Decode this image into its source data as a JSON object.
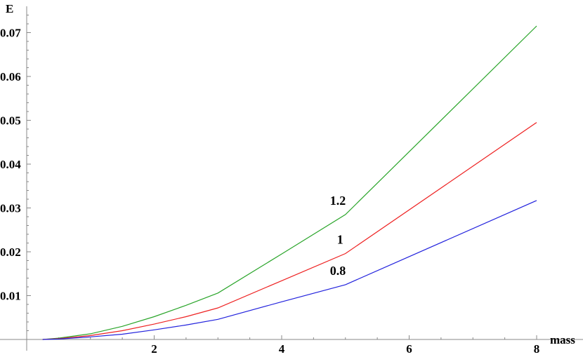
{
  "chart_data": {
    "type": "line",
    "xlabel": "mass",
    "ylabel": "E",
    "xlim": [
      0,
      8.35
    ],
    "ylim": [
      0,
      0.076
    ],
    "x_ticks": [
      2,
      4,
      6,
      8
    ],
    "x_tick_labels": [
      "2",
      "4",
      "6",
      "8"
    ],
    "y_ticks": [
      0.01,
      0.02,
      0.03,
      0.04,
      0.05,
      0.06,
      0.07
    ],
    "y_tick_labels": [
      "0.01",
      "0.02",
      "0.03",
      "0.04",
      "0.05",
      "0.06",
      "0.07"
    ],
    "grid": false,
    "series": [
      {
        "name": "1.2",
        "color": "#2aa52a",
        "x": [
          0.25,
          0.5,
          1.0,
          1.5,
          2.0,
          2.5,
          3.0,
          4.0,
          5.0,
          8.0
        ],
        "y": [
          0.0,
          0.0003,
          0.0013,
          0.003,
          0.0052,
          0.0078,
          0.0106,
          0.0195,
          0.0285,
          0.0715
        ]
      },
      {
        "name": "1",
        "color": "#ee2222",
        "x": [
          0.25,
          0.5,
          1.0,
          1.5,
          2.0,
          2.5,
          3.0,
          4.0,
          5.0,
          8.0
        ],
        "y": [
          0.0,
          0.0002,
          0.0009,
          0.002,
          0.0035,
          0.0052,
          0.0072,
          0.0134,
          0.0196,
          0.0495
        ]
      },
      {
        "name": "0.8",
        "color": "#2222dd",
        "x": [
          0.25,
          0.5,
          1.0,
          1.5,
          2.0,
          2.5,
          3.0,
          4.0,
          5.0,
          8.0
        ],
        "y": [
          0.0,
          0.0001,
          0.0006,
          0.0012,
          0.0022,
          0.0033,
          0.0046,
          0.0086,
          0.0125,
          0.0317
        ]
      }
    ]
  }
}
